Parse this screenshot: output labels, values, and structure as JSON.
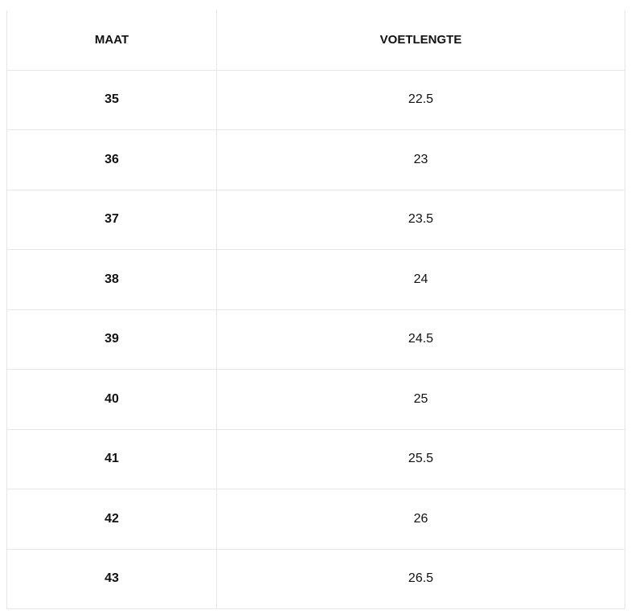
{
  "table": {
    "headers": [
      "MAAT",
      "VOETLENGTE"
    ],
    "rows": [
      [
        "35",
        "22.5"
      ],
      [
        "36",
        "23"
      ],
      [
        "37",
        "23.5"
      ],
      [
        "38",
        "24"
      ],
      [
        "39",
        "24.5"
      ],
      [
        "40",
        "25"
      ],
      [
        "41",
        "25.5"
      ],
      [
        "42",
        "26"
      ],
      [
        "43",
        "26.5"
      ]
    ]
  }
}
